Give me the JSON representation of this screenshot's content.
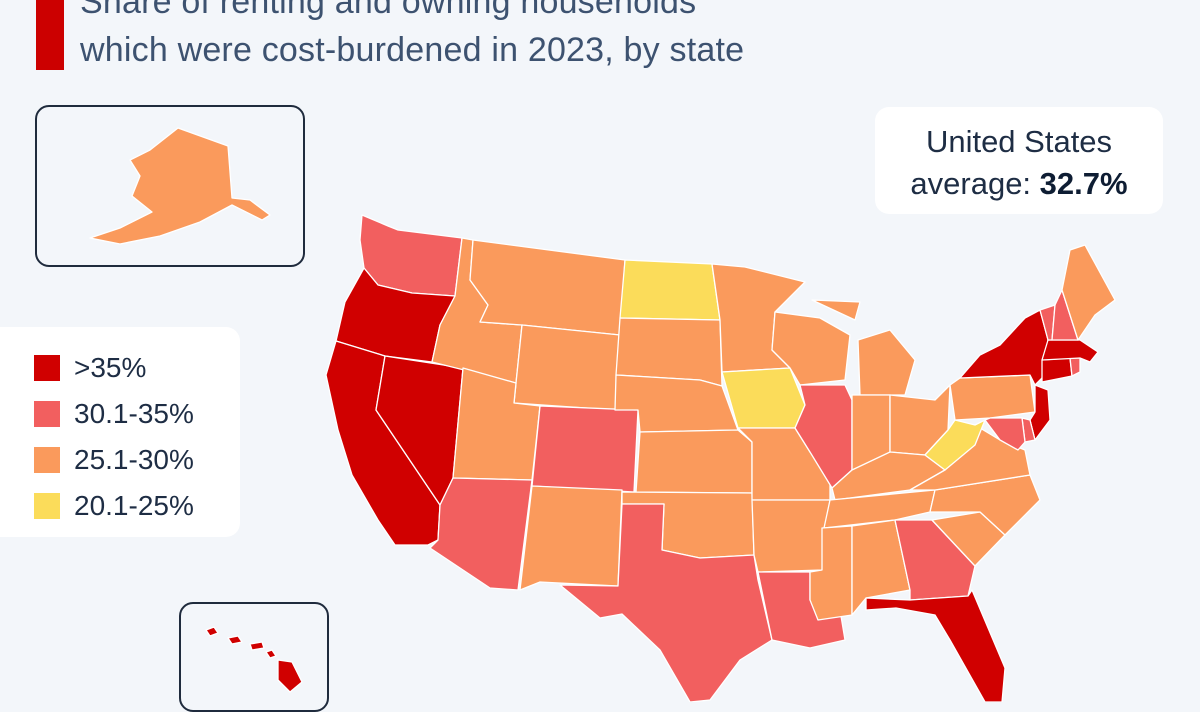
{
  "title": {
    "line1": "Share of renting and owning households",
    "line2": "which were cost-burdened in 2023, by state"
  },
  "us_average": {
    "label_line1": "United States",
    "label_prefix": "average:",
    "value": "32.7%"
  },
  "legend": [
    {
      "label": ">35%",
      "color": "#d00000"
    },
    {
      "label": "30.1-35%",
      "color": "#f25f5f"
    },
    {
      "label": "25.1-30%",
      "color": "#fa9a5c"
    },
    {
      "label": "20.1-25%",
      "color": "#fbdc5a"
    }
  ],
  "colors": {
    "background": "#f3f6fa",
    "title_bar": "#cc0000",
    "border": "#ffffff"
  },
  "states": {
    "WA": 1,
    "OR": 0,
    "CA": 0,
    "NV": 0,
    "ID": 2,
    "MT": 2,
    "WY": 2,
    "UT": 2,
    "AZ": 1,
    "CO": 1,
    "NM": 2,
    "ND": 3,
    "SD": 2,
    "NE": 2,
    "KS": 2,
    "OK": 2,
    "TX": 1,
    "MN": 2,
    "IA": 3,
    "MO": 2,
    "AR": 2,
    "LA": 1,
    "WI": 2,
    "IL": 1,
    "MI": 2,
    "IN": 2,
    "OH": 2,
    "KY": 2,
    "TN": 2,
    "MS": 2,
    "AL": 2,
    "GA": 1,
    "FL": 0,
    "SC": 2,
    "NC": 2,
    "VA": 2,
    "WV": 3,
    "PA": 2,
    "NY": 0,
    "VT": 1,
    "NH": 1,
    "ME": 2,
    "MA": 0,
    "CT": 0,
    "RI": 1,
    "NJ": 0,
    "DE": 1,
    "MD": 1,
    "AK": 2,
    "HI": 0
  }
}
